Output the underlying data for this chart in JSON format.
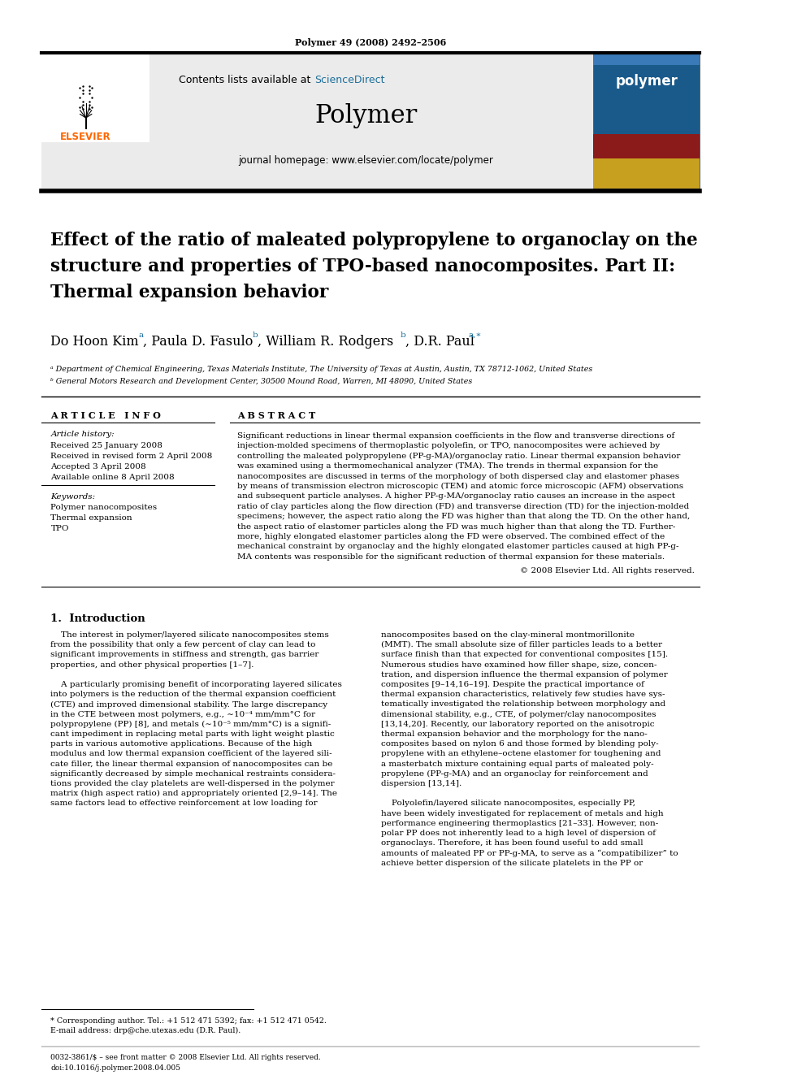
{
  "page_title": "Polymer 49 (2008) 2492–2506",
  "journal_name": "Polymer",
  "contents_line": "Contents lists available at ScienceDirect",
  "journal_homepage": "journal homepage: www.elsevier.com/locate/polymer",
  "paper_title_line1": "Effect of the ratio of maleated polypropylene to organoclay on the",
  "paper_title_line2": "structure and properties of TPO-based nanocomposites. Part II:",
  "paper_title_line3": "Thermal expansion behavior",
  "article_info_header": "A R T I C L E   I N F O",
  "article_history_label": "Article history:",
  "received_1": "Received 25 January 2008",
  "received_2": "Received in revised form 2 April 2008",
  "accepted": "Accepted 3 April 2008",
  "available": "Available online 8 April 2008",
  "keywords_label": "Keywords:",
  "keyword_1": "Polymer nanocomposites",
  "keyword_2": "Thermal expansion",
  "keyword_3": "TPO",
  "abstract_header": "A B S T R A C T",
  "copyright": "© 2008 Elsevier Ltd. All rights reserved.",
  "intro_header": "1.  Introduction",
  "affil_a": "ᵃ Department of Chemical Engineering, Texas Materials Institute, The University of Texas at Austin, Austin, TX 78712-1062, United States",
  "affil_b": "ᵇ General Motors Research and Development Center, 30500 Mound Road, Warren, MI 48090, United States",
  "footnote_author": "* Corresponding author. Tel.: +1 512 471 5392; fax: +1 512 471 0542.",
  "footnote_email": "E-mail address: drp@che.utexas.edu (D.R. Paul).",
  "footer_issn": "0032-3861/$ – see front matter © 2008 Elsevier Ltd. All rights reserved.",
  "footer_doi": "doi:10.1016/j.polymer.2008.04.005",
  "bg_color": "#ffffff",
  "sciencedirect_color": "#1a6e9a"
}
